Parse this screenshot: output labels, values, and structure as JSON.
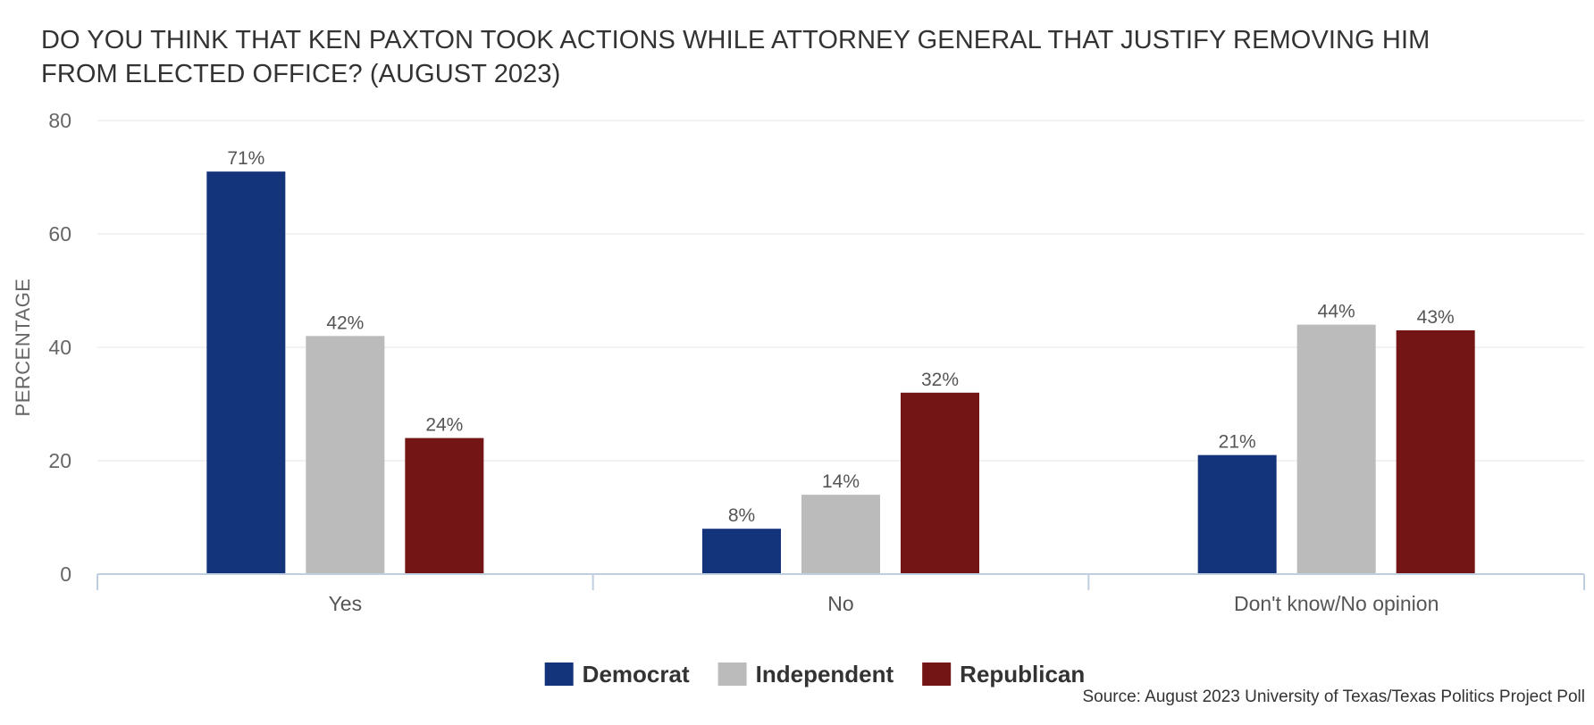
{
  "chart_data": {
    "type": "bar",
    "title": "DO YOU THINK THAT KEN PAXTON TOOK ACTIONS WHILE ATTORNEY GENERAL THAT JUSTIFY REMOVING HIM FROM ELECTED OFFICE? (AUGUST 2023)",
    "ylabel": "PERCENTAGE",
    "xlabel": "",
    "ylim": [
      0,
      80
    ],
    "yticks": [
      0,
      20,
      40,
      60,
      80
    ],
    "grid": true,
    "legend_position": "bottom-center",
    "categories": [
      "Yes",
      "No",
      "Don't know/No opinion"
    ],
    "series": [
      {
        "name": "Democrat",
        "color": "#13337a",
        "values": [
          71,
          8,
          21
        ],
        "labels": [
          "71%",
          "8%",
          "21%"
        ]
      },
      {
        "name": "Independent",
        "color": "#bbbbbb",
        "values": [
          42,
          14,
          44
        ],
        "labels": [
          "42%",
          "14%",
          "44%"
        ]
      },
      {
        "name": "Republican",
        "color": "#731515",
        "values": [
          24,
          32,
          43
        ],
        "labels": [
          "24%",
          "32%",
          "43%"
        ]
      }
    ],
    "source": "Source: August 2023 University of Texas/Texas Politics Project Poll"
  }
}
